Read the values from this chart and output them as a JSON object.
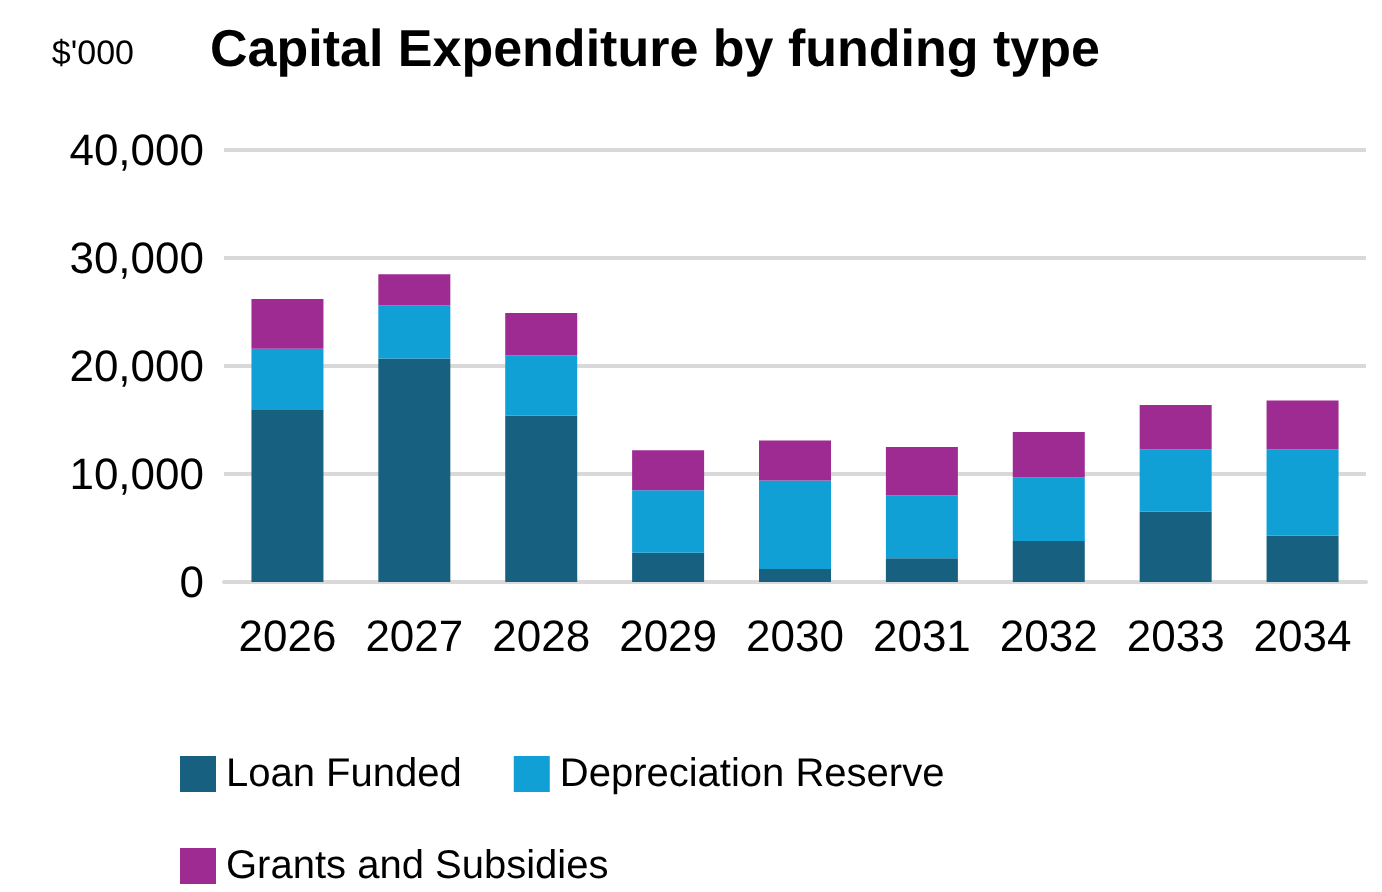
{
  "chart_data": {
    "type": "bar",
    "title": "Capital Expenditure by funding type",
    "ylabel": "$'000",
    "categories": [
      "2026",
      "2027",
      "2028",
      "2029",
      "2030",
      "2031",
      "2032",
      "2033",
      "2034"
    ],
    "series": [
      {
        "name": "Loan Funded",
        "color": "#17607f",
        "values": [
          16000,
          20700,
          15400,
          2700,
          1200,
          2200,
          3800,
          6500,
          4300
        ]
      },
      {
        "name": "Depreciation Reserve",
        "color": "#11a0d6",
        "values": [
          5600,
          4900,
          5600,
          5800,
          8200,
          5800,
          5900,
          5800,
          8000
        ]
      },
      {
        "name": "Grants and Subsidies",
        "color": "#9e2b91",
        "values": [
          4600,
          2900,
          3900,
          3700,
          3700,
          4500,
          4200,
          4100,
          4500
        ]
      }
    ],
    "stacked": true,
    "ylim": [
      0,
      40000
    ],
    "yticks": [
      0,
      {
        "value": 10000,
        "label": "10,000"
      },
      {
        "value": 20000,
        "label": "20,000"
      },
      {
        "value": 30000,
        "label": "30,000"
      },
      {
        "value": 40000,
        "label": "40,000"
      }
    ],
    "grid": "y",
    "legend": "bottom"
  }
}
